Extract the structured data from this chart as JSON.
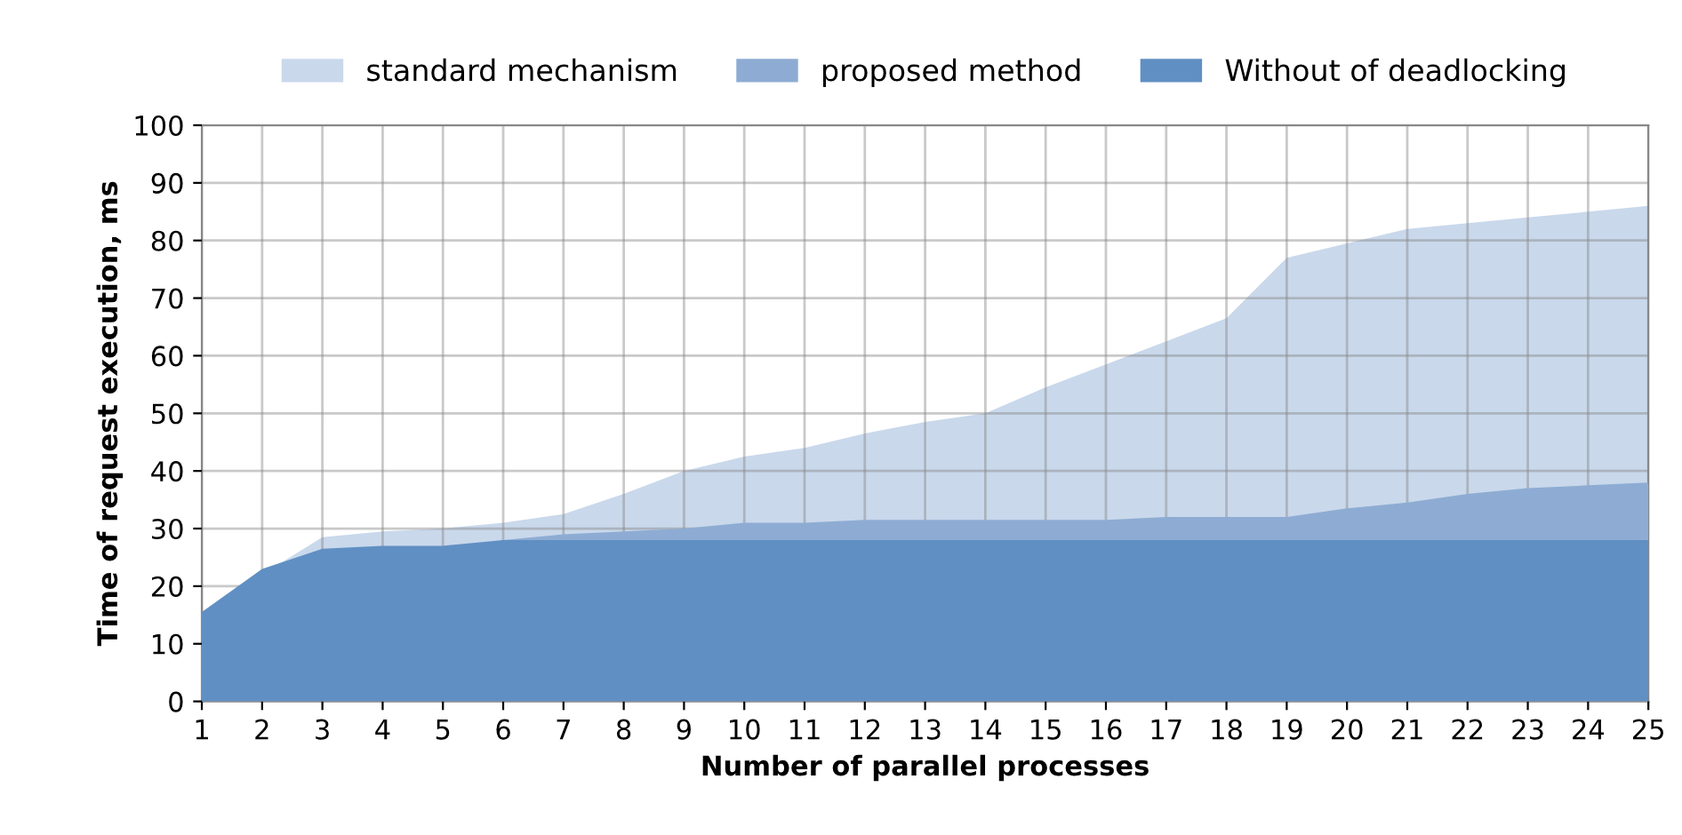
{
  "chart_data": {
    "type": "area",
    "xlabel": "Number of parallel processes",
    "ylabel": "Time of request execution, ms",
    "x": [
      1,
      2,
      3,
      4,
      5,
      6,
      7,
      8,
      9,
      10,
      11,
      12,
      13,
      14,
      15,
      16,
      17,
      18,
      19,
      20,
      21,
      22,
      23,
      24,
      25
    ],
    "xlim": [
      1,
      25
    ],
    "xticks": [
      1,
      2,
      3,
      4,
      5,
      6,
      7,
      8,
      9,
      10,
      11,
      12,
      13,
      14,
      15,
      16,
      17,
      18,
      19,
      20,
      21,
      22,
      23,
      24,
      25
    ],
    "ylim": [
      0,
      100
    ],
    "yticks": [
      0,
      10,
      20,
      30,
      40,
      50,
      60,
      70,
      80,
      90,
      100
    ],
    "grid": true,
    "legend": "top",
    "series": [
      {
        "name": "standard mechanism",
        "color": "#c9d8eb",
        "values": [
          15.5,
          null,
          28.5,
          29.5,
          30,
          31,
          32.5,
          36,
          40,
          42.5,
          44,
          46.5,
          48.5,
          50,
          54.5,
          58.5,
          62.5,
          66.5,
          77,
          79.5,
          82,
          83,
          84,
          85,
          86
        ]
      },
      {
        "name": "proposed method",
        "color": "#8eacd3",
        "values": [
          15.5,
          null,
          null,
          null,
          null,
          28,
          29,
          29.5,
          30,
          31,
          31,
          31.5,
          31.5,
          31.5,
          31.5,
          31.5,
          32,
          32,
          32,
          33.5,
          34.5,
          36,
          37,
          37.5,
          38
        ]
      },
      {
        "name": "Without of deadlocking",
        "color": "#608fc3",
        "values": [
          15.5,
          23,
          26.5,
          27,
          27,
          28,
          28,
          28,
          28,
          28,
          28,
          28,
          28,
          28,
          28,
          28,
          28,
          28,
          28,
          28,
          28,
          28,
          28,
          28,
          28
        ]
      }
    ]
  }
}
